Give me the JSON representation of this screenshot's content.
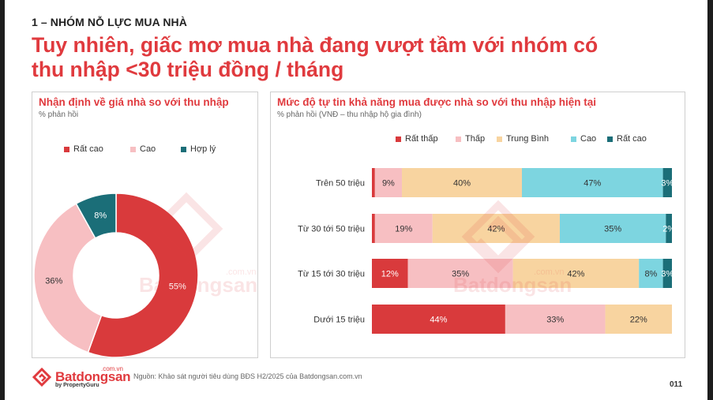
{
  "kicker": "1 – NHÓM NỖ LỰC MUA NHÀ",
  "headline_line1": "Tuy nhiên, giấc mơ mua nhà đang vượt tầm với nhóm có",
  "headline_line2": "thu nhập <30 triệu đồng / tháng",
  "source_note": "Nguồn: Khảo sát người tiêu dùng BĐS H2/2025 của Batdongsan.com.vn",
  "page_number": "011",
  "logo": {
    "word": "Batdongsan",
    "tld": ".com.vn",
    "by": "by PropertyGuru",
    "icon": "house-logo-icon"
  },
  "watermark": {
    "word": "Batdongsan",
    "tld": ".com.vn"
  },
  "colors": {
    "accent": "#e03a3e",
    "rat_thap": "#d93a3c",
    "thap": "#f7bfc2",
    "trung_binh": "#f8d4a0",
    "cao": "#7dd5e0",
    "rat_cao": "#1b6e78",
    "hop_ly": "#1b6e78"
  },
  "chart_data": [
    {
      "type": "pie",
      "donut": true,
      "title": "Nhận định về giá nhà so với thu nhập",
      "subtitle": "% phản hồi",
      "legend_position": "top",
      "categories": [
        "Rất cao",
        "Cao",
        "Hợp lý"
      ],
      "values": [
        55,
        36,
        8
      ],
      "labels": [
        "55%",
        "36%",
        "8%"
      ],
      "colors": [
        "#d93a3c",
        "#f7bfc2",
        "#1b6e78"
      ]
    },
    {
      "type": "bar",
      "orientation": "horizontal",
      "stacked": true,
      "title": "Mức độ tự tin khả năng mua được nhà so với thu nhập hiện tại",
      "subtitle": "% phản hồi (VNĐ – thu nhập hộ gia đình)",
      "legend_position": "top",
      "categories": [
        "Trên 50 triệu",
        "Từ 30 tới 50 triệu",
        "Từ 15 tới 30 triệu",
        "Dưới 15 triệu"
      ],
      "series": [
        {
          "name": "Rất thấp",
          "color": "#d93a3c",
          "values": [
            1,
            1,
            12,
            44
          ],
          "labels": [
            "",
            "",
            "12%",
            "44%"
          ]
        },
        {
          "name": "Thấp",
          "color": "#f7bfc2",
          "values": [
            9,
            19,
            35,
            33
          ],
          "labels": [
            "9%",
            "19%",
            "35%",
            "33%"
          ]
        },
        {
          "name": "Trung Bình",
          "color": "#f8d4a0",
          "values": [
            40,
            42,
            42,
            22
          ],
          "labels": [
            "40%",
            "42%",
            "42%",
            "22%"
          ]
        },
        {
          "name": "Cao",
          "color": "#7dd5e0",
          "values": [
            47,
            35,
            8,
            0
          ],
          "labels": [
            "47%",
            "35%",
            "8%",
            ""
          ]
        },
        {
          "name": "Rất cao",
          "color": "#1b6e78",
          "values": [
            3,
            2,
            3,
            0
          ],
          "labels": [
            "3%",
            "2%",
            "3%",
            ""
          ]
        }
      ]
    }
  ]
}
